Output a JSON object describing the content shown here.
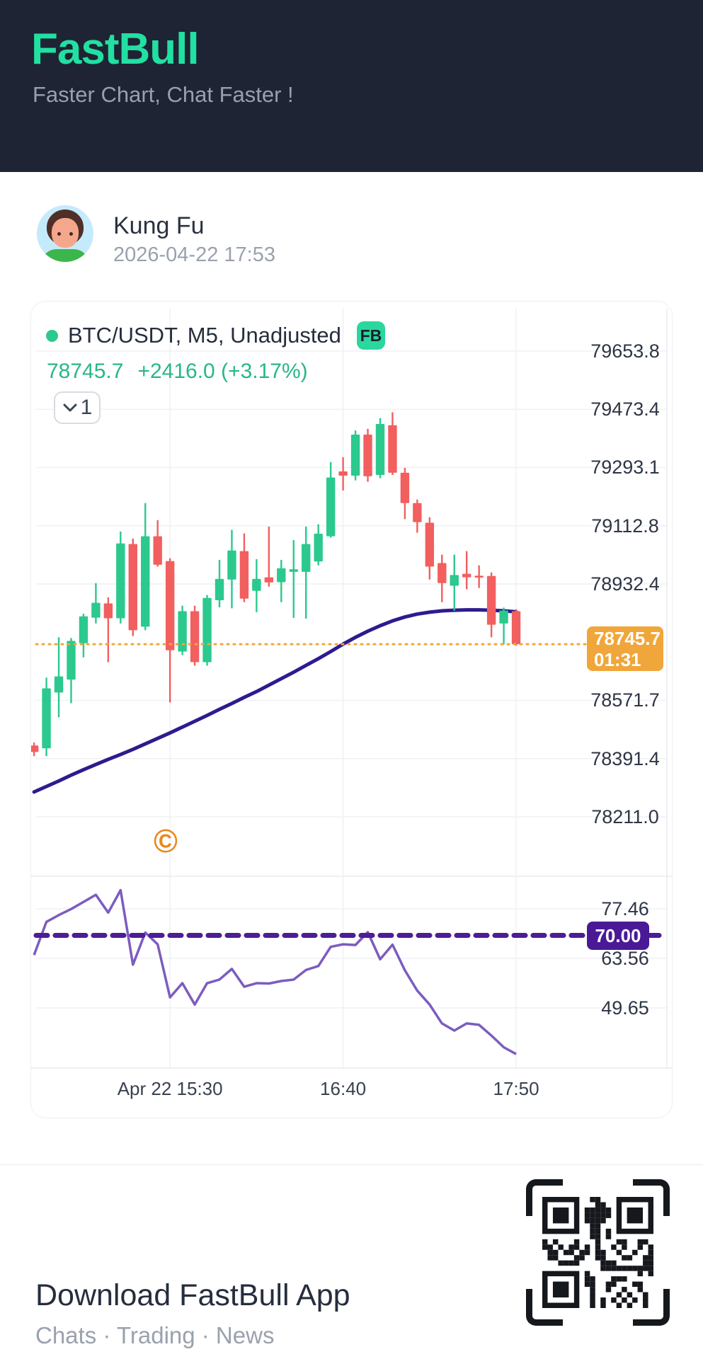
{
  "header": {
    "logo": "FastBull",
    "tagline": "Faster Chart, Chat Faster !",
    "bg_color": "#1e2433",
    "logo_color": "#22dfa2",
    "tagline_color": "#98a0ac"
  },
  "post": {
    "author": "Kung Fu",
    "timestamp": "2026-04-22 17:53"
  },
  "chart": {
    "symbol_line": "BTC/USDT, M5, Unadjusted",
    "fb_badge": "FB",
    "price": "78745.7",
    "change": "+2416.0 (+3.17%)",
    "interval_value": "1",
    "watermark": "©",
    "colors": {
      "up": "#2bc98e",
      "down": "#f25f5f",
      "ma_line": "#2d1b8f",
      "rsi_line": "#7c5cbf",
      "rsi_dash": "#4c1d95",
      "price_line": "#f0a63a",
      "badge_orange": "#f0a63a",
      "badge_purple": "#4a1a96",
      "grid": "#f0f1f5",
      "axis_text": "#2e3545"
    },
    "chart_data": {
      "type": "candlestick",
      "symbol": "BTC/USDT",
      "interval": "M5",
      "adjustment": "Unadjusted",
      "current_price": 78745.7,
      "current_price_label": "78745.7",
      "countdown": "01:31",
      "rsi_threshold": 70,
      "rsi_threshold_label": "70.00",
      "price_ticks": [
        79653.8,
        79473.4,
        79293.1,
        79112.8,
        78932.4,
        78571.7,
        78391.4,
        78211.0
      ],
      "price_axis_range": [
        78130,
        79720
      ],
      "rsi_ticks": [
        77.46,
        63.56,
        49.65
      ],
      "rsi_axis_range": [
        33,
        86
      ],
      "x_ticks": [
        {
          "label": "Apr 22 15:30",
          "index": 11
        },
        {
          "label": "16:40",
          "index": 25
        },
        {
          "label": "17:50",
          "index": 39
        }
      ],
      "candles": [
        [
          78432,
          78441,
          78399,
          78412
        ],
        [
          78423,
          78642,
          78399,
          78609
        ],
        [
          78596,
          78767,
          78519,
          78646
        ],
        [
          78636,
          78765,
          78563,
          78756
        ],
        [
          78749,
          78840,
          78705,
          78832
        ],
        [
          78828,
          78935,
          78810,
          78874
        ],
        [
          78872,
          78891,
          78690,
          78826
        ],
        [
          78826,
          79095,
          78810,
          79058
        ],
        [
          79056,
          79073,
          78771,
          78789
        ],
        [
          78800,
          79183,
          78789,
          79080
        ],
        [
          79080,
          79130,
          78986,
          78992
        ],
        [
          79003,
          79012,
          78565,
          78727
        ],
        [
          78723,
          78865,
          78712,
          78848
        ],
        [
          78848,
          78865,
          78679,
          78690
        ],
        [
          78690,
          78898,
          78679,
          78889
        ],
        [
          78882,
          79007,
          78860,
          78948
        ],
        [
          78946,
          79100,
          78857,
          79036
        ],
        [
          79034,
          79089,
          78876,
          78887
        ],
        [
          78911,
          79009,
          78845,
          78948
        ],
        [
          78953,
          79110,
          78924,
          78937
        ],
        [
          78938,
          79007,
          78876,
          78981
        ],
        [
          78970,
          79068,
          78827,
          78978
        ],
        [
          78970,
          79110,
          78825,
          79056
        ],
        [
          79002,
          79117,
          78990,
          79088
        ],
        [
          79080,
          79310,
          79076,
          79262
        ],
        [
          79281,
          79325,
          79222,
          79268
        ],
        [
          79268,
          79408,
          79253,
          79395
        ],
        [
          79395,
          79413,
          79249,
          79266
        ],
        [
          79270,
          79446,
          79260,
          79428
        ],
        [
          79424,
          79464,
          79270,
          79277
        ],
        [
          79277,
          79292,
          79133,
          79183
        ],
        [
          79183,
          79194,
          79091,
          79124
        ],
        [
          79122,
          79139,
          78946,
          78986
        ],
        [
          78997,
          79023,
          78876,
          78935
        ],
        [
          78927,
          79023,
          78850,
          78960
        ],
        [
          78964,
          79034,
          78916,
          78953
        ],
        [
          78958,
          78990,
          78920,
          78952
        ],
        [
          78957,
          78968,
          78767,
          78806
        ],
        [
          78810,
          78859,
          78745,
          78850
        ],
        [
          78848,
          78854,
          78741,
          78745.7
        ]
      ],
      "ma": [
        78288,
        78305,
        78322,
        78340,
        78357,
        78373,
        78389,
        78404,
        78420,
        78437,
        78454,
        78471,
        78489,
        78507,
        78525,
        78544,
        78562,
        78581,
        78599,
        78619,
        78639,
        78659,
        78680,
        78701,
        78723,
        78746,
        78767,
        78786,
        78803,
        78818,
        78830,
        78839,
        78845,
        78849,
        78851,
        78852,
        78852,
        78851,
        78849,
        78846
      ],
      "rsi": [
        64.5,
        73.8,
        75.7,
        77.4,
        79.4,
        81.4,
        76.4,
        82.7,
        61.8,
        70.8,
        67.5,
        52.6,
        56.6,
        50.6,
        56.6,
        57.6,
        60.6,
        55.6,
        56.6,
        56.5,
        57.2,
        57.6,
        60.3,
        61.4,
        66.8,
        67.5,
        67.3,
        70.9,
        63.3,
        67.4,
        60.2,
        54.5,
        50.6,
        45.3,
        43.3,
        45.3,
        44.9,
        41.9,
        38.6,
        36.7
      ]
    }
  },
  "footer": {
    "title": "Download FastBull App",
    "subtitle": "Chats · Trading · News"
  }
}
